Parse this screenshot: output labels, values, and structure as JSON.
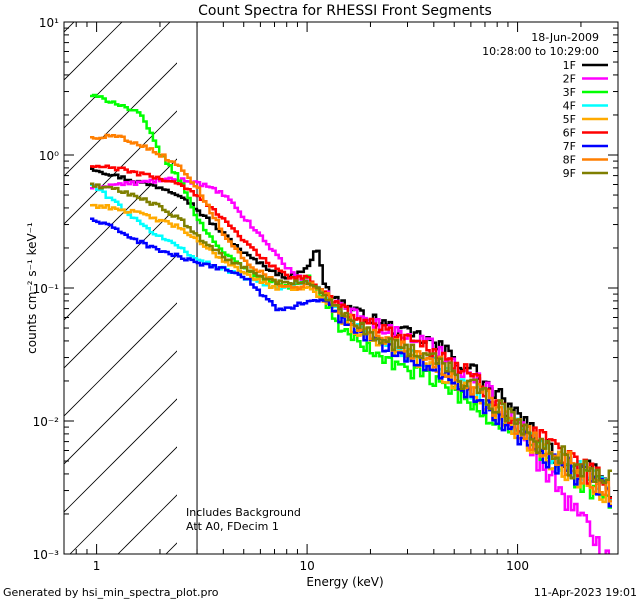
{
  "chart_data": {
    "type": "line",
    "title": "Count Spectra for RHESSI Front Segments",
    "xlabel": "Energy (keV)",
    "ylabel": "counts cm⁻² s⁻¹ keV⁻¹",
    "xscale": "log",
    "yscale": "log",
    "xlim": [
      0.7,
      300
    ],
    "ylim": [
      0.001,
      10
    ],
    "xticks": [
      {
        "value": 1,
        "label": "1"
      },
      {
        "value": 10,
        "label": "10"
      },
      {
        "value": 100,
        "label": "100"
      }
    ],
    "yticks": [
      {
        "value": 10,
        "label": "10¹"
      },
      {
        "value": 1,
        "label": "10⁰"
      },
      {
        "value": 0.1,
        "label": "10⁻¹"
      },
      {
        "value": 0.01,
        "label": "10⁻²"
      },
      {
        "value": 0.001,
        "label": "10⁻³"
      }
    ],
    "threshold_line_x": 3,
    "date": "18-Jun-2009",
    "time_range": "10:28:00 to 10:29:00",
    "annotations": [
      "Includes Background",
      "Att A0, FDecim 1"
    ],
    "footer_left": "Generated by hsi_min_spectra_plot.pro",
    "footer_right": "11-Apr-2023 19:01",
    "series": [
      {
        "name": "1F",
        "color": "#000000",
        "values": [
          [
            0.93,
            0.8
          ],
          [
            1.2,
            0.7
          ],
          [
            1.6,
            0.62
          ],
          [
            2.0,
            0.57
          ],
          [
            2.5,
            0.5
          ],
          [
            3.0,
            0.38
          ],
          [
            4,
            0.25
          ],
          [
            5,
            0.18
          ],
          [
            6,
            0.15
          ],
          [
            7,
            0.13
          ],
          [
            8,
            0.12
          ],
          [
            9,
            0.13
          ],
          [
            10,
            0.15
          ],
          [
            11,
            0.2
          ],
          [
            12,
            0.1
          ],
          [
            14,
            0.08
          ],
          [
            18,
            0.062
          ],
          [
            22,
            0.055
          ],
          [
            28,
            0.046
          ],
          [
            35,
            0.042
          ],
          [
            45,
            0.033
          ],
          [
            60,
            0.024
          ],
          [
            80,
            0.015
          ],
          [
            100,
            0.01
          ],
          [
            130,
            0.0068
          ],
          [
            160,
            0.0052
          ],
          [
            200,
            0.0042
          ],
          [
            240,
            0.0036
          ],
          [
            280,
            0.003
          ]
        ]
      },
      {
        "name": "2F",
        "color": "#ff00ff",
        "values": [
          [
            0.93,
            0.57
          ],
          [
            1.2,
            0.6
          ],
          [
            1.6,
            0.62
          ],
          [
            2.0,
            0.65
          ],
          [
            2.5,
            0.65
          ],
          [
            3.0,
            0.62
          ],
          [
            4,
            0.5
          ],
          [
            5,
            0.33
          ],
          [
            6,
            0.24
          ],
          [
            7,
            0.18
          ],
          [
            8,
            0.14
          ],
          [
            9,
            0.12
          ],
          [
            10,
            0.11
          ],
          [
            12,
            0.09
          ],
          [
            14,
            0.075
          ],
          [
            18,
            0.06
          ],
          [
            22,
            0.052
          ],
          [
            28,
            0.044
          ],
          [
            35,
            0.04
          ],
          [
            45,
            0.031
          ],
          [
            60,
            0.022
          ],
          [
            80,
            0.014
          ],
          [
            100,
            0.009
          ],
          [
            130,
            0.0045
          ],
          [
            160,
            0.003
          ],
          [
            200,
            0.0017
          ],
          [
            240,
            0.0012
          ],
          [
            280,
            0.001
          ]
        ]
      },
      {
        "name": "3F",
        "color": "#00ff00",
        "values": [
          [
            0.93,
            2.8
          ],
          [
            1.2,
            2.5
          ],
          [
            1.6,
            2.0
          ],
          [
            2.0,
            1.0
          ],
          [
            2.5,
            0.62
          ],
          [
            3.0,
            0.32
          ],
          [
            4,
            0.18
          ],
          [
            5,
            0.14
          ],
          [
            6,
            0.12
          ],
          [
            7,
            0.11
          ],
          [
            8,
            0.1
          ],
          [
            9,
            0.11
          ],
          [
            10,
            0.12
          ],
          [
            12,
            0.08
          ],
          [
            14,
            0.05
          ],
          [
            18,
            0.038
          ],
          [
            22,
            0.03
          ],
          [
            28,
            0.025
          ],
          [
            35,
            0.022
          ],
          [
            45,
            0.018
          ],
          [
            60,
            0.013
          ],
          [
            80,
            0.01
          ],
          [
            100,
            0.008
          ],
          [
            130,
            0.0055
          ],
          [
            160,
            0.0045
          ],
          [
            200,
            0.0036
          ],
          [
            240,
            0.003
          ],
          [
            280,
            0.0026
          ]
        ]
      },
      {
        "name": "4F",
        "color": "#00ffff",
        "values": [
          [
            0.93,
            0.6
          ],
          [
            1.2,
            0.45
          ],
          [
            1.6,
            0.3
          ],
          [
            2.0,
            0.24
          ],
          [
            2.5,
            0.2
          ],
          [
            3.0,
            0.16
          ],
          [
            4,
            0.14
          ],
          [
            5,
            0.12
          ],
          [
            6,
            0.11
          ],
          [
            7,
            0.1
          ],
          [
            8,
            0.1
          ],
          [
            9,
            0.11
          ],
          [
            10,
            0.11
          ],
          [
            12,
            0.09
          ],
          [
            14,
            0.065
          ],
          [
            18,
            0.048
          ],
          [
            22,
            0.04
          ],
          [
            28,
            0.033
          ],
          [
            35,
            0.029
          ],
          [
            45,
            0.023
          ],
          [
            60,
            0.017
          ],
          [
            80,
            0.012
          ],
          [
            100,
            0.0085
          ],
          [
            130,
            0.006
          ],
          [
            160,
            0.0048
          ],
          [
            200,
            0.004
          ],
          [
            240,
            0.0034
          ],
          [
            280,
            0.003
          ]
        ]
      },
      {
        "name": "5F",
        "color": "#ffaa00",
        "values": [
          [
            0.93,
            0.42
          ],
          [
            1.2,
            0.4
          ],
          [
            1.6,
            0.36
          ],
          [
            2.0,
            0.32
          ],
          [
            2.5,
            0.28
          ],
          [
            3.0,
            0.22
          ],
          [
            4,
            0.16
          ],
          [
            5,
            0.13
          ],
          [
            6,
            0.11
          ],
          [
            7,
            0.1
          ],
          [
            8,
            0.1
          ],
          [
            9,
            0.1
          ],
          [
            10,
            0.1
          ],
          [
            12,
            0.08
          ],
          [
            14,
            0.06
          ],
          [
            18,
            0.045
          ],
          [
            22,
            0.038
          ],
          [
            28,
            0.032
          ],
          [
            35,
            0.028
          ],
          [
            45,
            0.022
          ],
          [
            60,
            0.016
          ],
          [
            80,
            0.011
          ],
          [
            100,
            0.008
          ],
          [
            130,
            0.0058
          ],
          [
            160,
            0.0046
          ],
          [
            200,
            0.0038
          ],
          [
            240,
            0.0032
          ],
          [
            280,
            0.0028
          ]
        ]
      },
      {
        "name": "6F",
        "color": "#ff0000",
        "values": [
          [
            0.93,
            0.82
          ],
          [
            1.2,
            0.8
          ],
          [
            1.6,
            0.72
          ],
          [
            2.0,
            0.66
          ],
          [
            2.5,
            0.6
          ],
          [
            3.0,
            0.48
          ],
          [
            4,
            0.33
          ],
          [
            5,
            0.22
          ],
          [
            6,
            0.17
          ],
          [
            7,
            0.14
          ],
          [
            8,
            0.12
          ],
          [
            9,
            0.12
          ],
          [
            10,
            0.12
          ],
          [
            12,
            0.09
          ],
          [
            14,
            0.072
          ],
          [
            18,
            0.058
          ],
          [
            22,
            0.05
          ],
          [
            28,
            0.043
          ],
          [
            35,
            0.038
          ],
          [
            45,
            0.03
          ],
          [
            60,
            0.021
          ],
          [
            80,
            0.014
          ],
          [
            100,
            0.0095
          ],
          [
            130,
            0.0068
          ],
          [
            160,
            0.0053
          ],
          [
            200,
            0.0043
          ],
          [
            240,
            0.0036
          ],
          [
            280,
            0.0032
          ]
        ]
      },
      {
        "name": "7F",
        "color": "#0000ff",
        "values": [
          [
            0.93,
            0.33
          ],
          [
            1.2,
            0.28
          ],
          [
            1.6,
            0.22
          ],
          [
            2.0,
            0.19
          ],
          [
            2.5,
            0.17
          ],
          [
            3.0,
            0.15
          ],
          [
            4,
            0.14
          ],
          [
            5,
            0.12
          ],
          [
            6,
            0.09
          ],
          [
            7,
            0.07
          ],
          [
            8,
            0.07
          ],
          [
            9,
            0.075
          ],
          [
            10,
            0.08
          ],
          [
            12,
            0.08
          ],
          [
            14,
            0.06
          ],
          [
            18,
            0.045
          ],
          [
            22,
            0.038
          ],
          [
            28,
            0.032
          ],
          [
            35,
            0.028
          ],
          [
            45,
            0.022
          ],
          [
            60,
            0.016
          ],
          [
            80,
            0.011
          ],
          [
            100,
            0.008
          ],
          [
            130,
            0.0058
          ],
          [
            160,
            0.0046
          ],
          [
            200,
            0.0038
          ],
          [
            240,
            0.0032
          ],
          [
            280,
            0.0028
          ]
        ]
      },
      {
        "name": "8F",
        "color": "#ff7f00",
        "values": [
          [
            0.93,
            1.35
          ],
          [
            1.2,
            1.4
          ],
          [
            1.6,
            1.2
          ],
          [
            2.0,
            1.0
          ],
          [
            2.5,
            0.8
          ],
          [
            3.0,
            0.55
          ],
          [
            4,
            0.25
          ],
          [
            5,
            0.16
          ],
          [
            6,
            0.13
          ],
          [
            7,
            0.11
          ],
          [
            8,
            0.1
          ],
          [
            9,
            0.1
          ],
          [
            10,
            0.11
          ],
          [
            12,
            0.09
          ],
          [
            14,
            0.065
          ],
          [
            18,
            0.05
          ],
          [
            22,
            0.042
          ],
          [
            28,
            0.035
          ],
          [
            35,
            0.031
          ],
          [
            45,
            0.025
          ],
          [
            60,
            0.018
          ],
          [
            80,
            0.012
          ],
          [
            100,
            0.0088
          ],
          [
            130,
            0.0062
          ],
          [
            160,
            0.005
          ],
          [
            200,
            0.0041
          ],
          [
            240,
            0.0035
          ],
          [
            280,
            0.0031
          ]
        ]
      },
      {
        "name": "9F",
        "color": "#7f7f00",
        "values": [
          [
            0.93,
            0.6
          ],
          [
            1.2,
            0.55
          ],
          [
            1.6,
            0.48
          ],
          [
            2.0,
            0.4
          ],
          [
            2.5,
            0.32
          ],
          [
            3.0,
            0.24
          ],
          [
            4,
            0.17
          ],
          [
            5,
            0.14
          ],
          [
            6,
            0.12
          ],
          [
            7,
            0.11
          ],
          [
            8,
            0.11
          ],
          [
            9,
            0.11
          ],
          [
            10,
            0.11
          ],
          [
            12,
            0.09
          ],
          [
            14,
            0.065
          ],
          [
            18,
            0.05
          ],
          [
            22,
            0.042
          ],
          [
            28,
            0.036
          ],
          [
            35,
            0.032
          ],
          [
            45,
            0.025
          ],
          [
            60,
            0.018
          ],
          [
            80,
            0.013
          ],
          [
            100,
            0.0092
          ],
          [
            130,
            0.0066
          ],
          [
            160,
            0.0052
          ],
          [
            200,
            0.0042
          ],
          [
            240,
            0.0036
          ],
          [
            280,
            0.0032
          ]
        ]
      }
    ]
  }
}
